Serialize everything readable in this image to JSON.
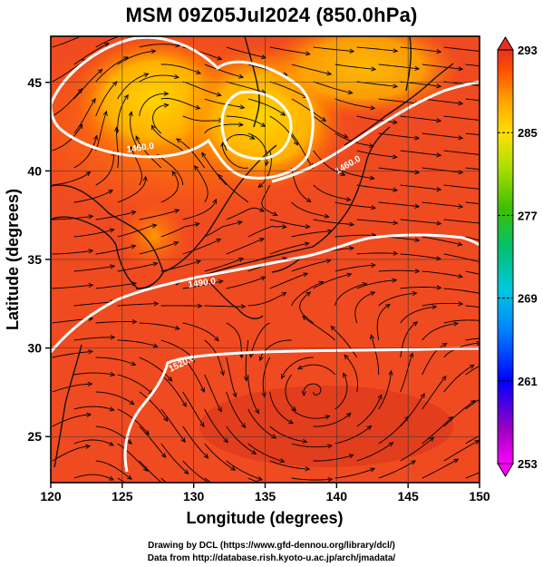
{
  "title": "MSM 09Z05Jul2024 (850.0hPa)",
  "x_axis": {
    "label": "Longitude (degrees)",
    "ticks": [
      "120",
      "125",
      "130",
      "135",
      "140",
      "145",
      "150"
    ],
    "range": [
      120,
      150
    ]
  },
  "y_axis": {
    "label": "Latitude  (degrees)",
    "ticks": [
      "25",
      "30",
      "35",
      "40",
      "45"
    ],
    "range": [
      22.4,
      47.6
    ]
  },
  "colorbar": {
    "ticks": [
      "293",
      "285",
      "277",
      "269",
      "261",
      "253"
    ],
    "range": [
      253,
      293
    ],
    "colors": [
      "#ff00ff",
      "#8000c0",
      "#0000ff",
      "#0080ff",
      "#00c0ff",
      "#00e0c0",
      "#00c000",
      "#80e000",
      "#e0ff00",
      "#ffd000",
      "#ff8000",
      "#ff4000",
      "#e02020"
    ]
  },
  "contours": {
    "labels": [
      "1460.0",
      "1460.0",
      "1490.0",
      "1520.0"
    ],
    "color": "#ffffff"
  },
  "footer": {
    "line1": "Drawing by DCL (https://www.gfd-dennou.org/library/dcl/)",
    "line2": "Data from http://database.rish.kyoto-u.ac.jp/arch/jmadata/"
  }
}
